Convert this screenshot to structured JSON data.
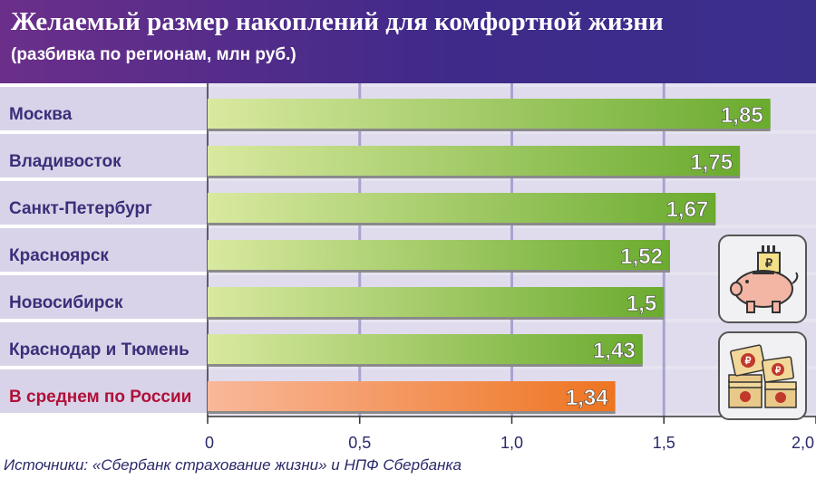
{
  "header": {
    "title": "Желаемый размер накоплений для комфортной жизни",
    "subtitle": "(разбивка по регионам, млн руб.)"
  },
  "source": "Источники: «Сбербанк страхование жизни» и НПФ Сбербанка",
  "icons": {
    "top": "piggy-bank-icon",
    "bottom": "money-stacks-icon"
  },
  "colors": {
    "bar_green_start": "#d9e9a0",
    "bar_green_end": "#6aab2e",
    "bar_orange_start": "#f9b89a",
    "bar_orange_end": "#ee7420",
    "label_normal": "#3b2f7a",
    "label_highlight": "#b0103a",
    "row_band": "#d8d3e8",
    "plot_bg": "#e7e4f1"
  },
  "chart_data": {
    "type": "bar",
    "orientation": "horizontal",
    "categories": [
      "Москва",
      "Владивосток",
      "Санкт-Петербург",
      "Красноярск",
      "Новосибирск",
      "Краснодар и Тюмень",
      "В среднем по России"
    ],
    "values": [
      1.85,
      1.75,
      1.67,
      1.52,
      1.5,
      1.43,
      1.34
    ],
    "value_labels": [
      "1,85",
      "1,75",
      "1,67",
      "1,52",
      "1,5",
      "1,43",
      "1,34"
    ],
    "highlight_index": 6,
    "xlim": [
      0,
      2.0
    ],
    "xticks": [
      0,
      0.5,
      1.0,
      1.5,
      2.0
    ],
    "xtick_labels": [
      "0",
      "0,5",
      "1,0",
      "1,5",
      "2,0"
    ],
    "grid": true
  }
}
